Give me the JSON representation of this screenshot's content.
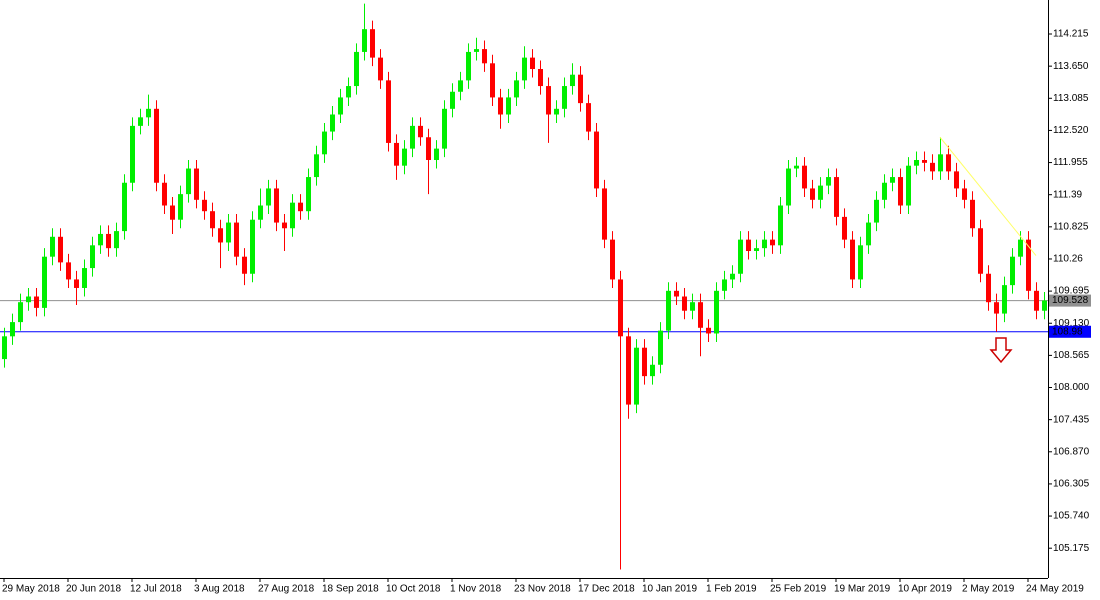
{
  "chart_data": {
    "type": "candlestick",
    "categories": [
      "29 May 2018",
      null,
      null,
      null,
      null,
      null,
      null,
      null,
      "20 Jun 2018",
      null,
      null,
      null,
      null,
      null,
      null,
      null,
      "12 Jul 2018",
      null,
      null,
      null,
      null,
      null,
      null,
      null,
      "3 Aug 2018",
      null,
      null,
      null,
      null,
      null,
      null,
      null,
      "27 Aug 2018",
      null,
      null,
      null,
      null,
      null,
      null,
      null,
      "18 Sep 2018",
      null,
      null,
      null,
      null,
      null,
      null,
      null,
      "10 Oct 2018",
      null,
      null,
      null,
      null,
      null,
      null,
      null,
      "1 Nov 2018",
      null,
      null,
      null,
      null,
      null,
      null,
      null,
      "23 Nov 2018",
      null,
      null,
      null,
      null,
      null,
      null,
      null,
      "17 Dec 2018",
      null,
      null,
      null,
      null,
      null,
      null,
      null,
      "10 Jan 2019",
      null,
      null,
      null,
      null,
      null,
      null,
      null,
      "1 Feb 2019",
      null,
      null,
      null,
      null,
      null,
      null,
      null,
      "25 Feb 2019",
      null,
      null,
      null,
      null,
      null,
      null,
      null,
      "19 Mar 2019",
      null,
      null,
      null,
      null,
      null,
      null,
      null,
      "10 Apr 2019",
      null,
      null,
      null,
      null,
      null,
      null,
      null,
      "2 May 2019",
      null,
      null,
      null,
      null,
      null,
      null,
      null,
      "24 May 2019",
      null,
      null
    ],
    "ohlc": [
      [
        108.5,
        109.05,
        108.35,
        108.9
      ],
      [
        108.9,
        109.3,
        108.75,
        109.15
      ],
      [
        109.15,
        109.65,
        109.0,
        109.5
      ],
      [
        109.5,
        109.75,
        109.35,
        109.6
      ],
      [
        109.6,
        109.75,
        109.25,
        109.4
      ],
      [
        109.4,
        110.45,
        109.25,
        110.3
      ],
      [
        110.3,
        110.8,
        110.15,
        110.65
      ],
      [
        110.65,
        110.8,
        110.05,
        110.2
      ],
      [
        110.2,
        110.35,
        109.75,
        109.9
      ],
      [
        109.9,
        110.05,
        109.45,
        109.75
      ],
      [
        109.75,
        110.25,
        109.6,
        110.1
      ],
      [
        110.1,
        110.65,
        109.95,
        110.5
      ],
      [
        110.5,
        110.85,
        110.35,
        110.7
      ],
      [
        110.7,
        110.85,
        110.3,
        110.45
      ],
      [
        110.45,
        110.9,
        110.3,
        110.75
      ],
      [
        110.75,
        111.75,
        110.6,
        111.6
      ],
      [
        111.6,
        112.75,
        111.45,
        112.6
      ],
      [
        112.6,
        112.9,
        112.45,
        112.75
      ],
      [
        112.75,
        113.15,
        112.6,
        112.9
      ],
      [
        112.9,
        113.05,
        111.45,
        111.6
      ],
      [
        111.6,
        111.75,
        111.05,
        111.2
      ],
      [
        111.2,
        111.35,
        110.7,
        110.95
      ],
      [
        110.95,
        111.55,
        110.8,
        111.4
      ],
      [
        111.4,
        112.0,
        111.25,
        111.85
      ],
      [
        111.85,
        112.0,
        111.15,
        111.3
      ],
      [
        111.3,
        111.45,
        110.95,
        111.1
      ],
      [
        111.1,
        111.25,
        110.65,
        110.8
      ],
      [
        110.8,
        110.95,
        110.1,
        110.55
      ],
      [
        110.55,
        111.05,
        110.4,
        110.9
      ],
      [
        110.9,
        111.05,
        110.15,
        110.3
      ],
      [
        110.3,
        110.45,
        109.8,
        110.0
      ],
      [
        110.0,
        111.1,
        109.85,
        110.95
      ],
      [
        110.95,
        111.5,
        110.8,
        111.2
      ],
      [
        111.2,
        111.65,
        111.05,
        111.5
      ],
      [
        111.5,
        111.65,
        110.75,
        110.9
      ],
      [
        110.9,
        111.05,
        110.4,
        110.8
      ],
      [
        110.8,
        111.4,
        110.65,
        111.25
      ],
      [
        111.25,
        111.4,
        110.95,
        111.1
      ],
      [
        111.1,
        111.85,
        110.95,
        111.7
      ],
      [
        111.7,
        112.25,
        111.55,
        112.1
      ],
      [
        112.1,
        112.65,
        111.95,
        112.5
      ],
      [
        112.5,
        112.95,
        112.35,
        112.8
      ],
      [
        112.8,
        113.25,
        112.65,
        113.1
      ],
      [
        113.1,
        113.45,
        112.95,
        113.3
      ],
      [
        113.3,
        114.05,
        113.15,
        113.9
      ],
      [
        113.9,
        114.75,
        113.75,
        114.3
      ],
      [
        114.3,
        114.45,
        113.65,
        113.8
      ],
      [
        113.8,
        113.95,
        113.25,
        113.4
      ],
      [
        113.4,
        113.55,
        112.15,
        112.3
      ],
      [
        112.3,
        112.45,
        111.65,
        111.9
      ],
      [
        111.9,
        112.35,
        111.75,
        112.2
      ],
      [
        112.2,
        112.75,
        112.05,
        112.6
      ],
      [
        112.6,
        112.75,
        112.25,
        112.4
      ],
      [
        112.4,
        112.55,
        111.4,
        112.0
      ],
      [
        112.0,
        112.35,
        111.85,
        112.2
      ],
      [
        112.2,
        113.05,
        112.05,
        112.9
      ],
      [
        112.9,
        113.35,
        112.75,
        113.2
      ],
      [
        113.2,
        113.55,
        113.05,
        113.4
      ],
      [
        113.4,
        114.05,
        113.25,
        113.9
      ],
      [
        113.9,
        114.15,
        113.75,
        113.95
      ],
      [
        113.95,
        114.1,
        113.55,
        113.7
      ],
      [
        113.7,
        113.85,
        112.95,
        113.1
      ],
      [
        113.1,
        113.25,
        112.55,
        112.8
      ],
      [
        112.8,
        113.25,
        112.65,
        113.1
      ],
      [
        113.1,
        113.55,
        112.95,
        113.4
      ],
      [
        113.4,
        114.0,
        113.25,
        113.8
      ],
      [
        113.8,
        113.95,
        113.45,
        113.6
      ],
      [
        113.6,
        113.75,
        113.15,
        113.3
      ],
      [
        113.3,
        113.45,
        112.3,
        112.8
      ],
      [
        112.8,
        113.05,
        112.65,
        112.9
      ],
      [
        112.9,
        113.45,
        112.75,
        113.3
      ],
      [
        113.3,
        113.7,
        113.15,
        113.5
      ],
      [
        113.5,
        113.65,
        112.85,
        113.0
      ],
      [
        113.0,
        113.15,
        112.35,
        112.5
      ],
      [
        112.5,
        112.65,
        111.35,
        111.5
      ],
      [
        111.5,
        111.65,
        110.45,
        110.6
      ],
      [
        110.6,
        110.75,
        109.75,
        109.9
      ],
      [
        109.9,
        110.05,
        104.8,
        108.9
      ],
      [
        108.9,
        109.05,
        107.45,
        107.7
      ],
      [
        107.7,
        108.85,
        107.55,
        108.7
      ],
      [
        108.7,
        108.85,
        108.05,
        108.2
      ],
      [
        108.2,
        108.55,
        108.05,
        108.4
      ],
      [
        108.4,
        109.15,
        108.25,
        109.0
      ],
      [
        109.0,
        109.85,
        108.85,
        109.7
      ],
      [
        109.7,
        109.85,
        109.45,
        109.6
      ],
      [
        109.6,
        109.75,
        109.2,
        109.35
      ],
      [
        109.35,
        109.65,
        109.2,
        109.5
      ],
      [
        109.5,
        109.65,
        108.55,
        109.05
      ],
      [
        109.05,
        109.2,
        108.8,
        108.95
      ],
      [
        108.95,
        109.85,
        108.8,
        109.7
      ],
      [
        109.7,
        110.05,
        109.55,
        109.9
      ],
      [
        109.9,
        110.15,
        109.75,
        110.0
      ],
      [
        110.0,
        110.75,
        109.85,
        110.6
      ],
      [
        110.6,
        110.75,
        110.25,
        110.4
      ],
      [
        110.4,
        110.6,
        110.25,
        110.45
      ],
      [
        110.45,
        110.75,
        110.3,
        110.6
      ],
      [
        110.6,
        110.75,
        110.35,
        110.5
      ],
      [
        110.5,
        111.35,
        110.35,
        111.2
      ],
      [
        111.2,
        112.0,
        111.05,
        111.85
      ],
      [
        111.85,
        112.05,
        111.7,
        111.9
      ],
      [
        111.9,
        112.05,
        111.35,
        111.5
      ],
      [
        111.5,
        111.65,
        111.15,
        111.3
      ],
      [
        111.3,
        111.7,
        111.15,
        111.55
      ],
      [
        111.55,
        111.85,
        111.4,
        111.7
      ],
      [
        111.7,
        111.85,
        110.85,
        111.0
      ],
      [
        111.0,
        111.15,
        110.45,
        110.6
      ],
      [
        110.6,
        110.75,
        109.75,
        109.9
      ],
      [
        109.9,
        110.65,
        109.75,
        110.5
      ],
      [
        110.5,
        111.05,
        110.35,
        110.9
      ],
      [
        110.9,
        111.45,
        110.75,
        111.3
      ],
      [
        111.3,
        111.75,
        111.15,
        111.6
      ],
      [
        111.6,
        111.85,
        111.45,
        111.7
      ],
      [
        111.7,
        111.85,
        111.05,
        111.2
      ],
      [
        111.2,
        112.05,
        111.05,
        111.9
      ],
      [
        111.9,
        112.15,
        111.75,
        112.0
      ],
      [
        112.0,
        112.15,
        111.8,
        111.95
      ],
      [
        111.95,
        112.1,
        111.65,
        111.8
      ],
      [
        111.8,
        112.4,
        111.65,
        112.1
      ],
      [
        112.1,
        112.25,
        111.65,
        111.8
      ],
      [
        111.8,
        111.95,
        111.35,
        111.5
      ],
      [
        111.5,
        111.65,
        111.15,
        111.3
      ],
      [
        111.3,
        111.45,
        110.65,
        110.8
      ],
      [
        110.8,
        110.95,
        109.85,
        110.0
      ],
      [
        110.0,
        110.15,
        109.35,
        109.5
      ],
      [
        109.5,
        109.65,
        108.98,
        109.3
      ],
      [
        109.3,
        109.95,
        109.15,
        109.8
      ],
      [
        109.8,
        110.45,
        109.65,
        110.3
      ],
      [
        110.3,
        110.75,
        110.15,
        110.6
      ],
      [
        110.6,
        110.75,
        109.55,
        109.7
      ],
      [
        109.7,
        109.85,
        109.2,
        109.35
      ],
      [
        109.35,
        109.68,
        109.2,
        109.53
      ]
    ],
    "up_color": "#00ee00",
    "down_color": "#ff0000",
    "ylim": [
      104.651,
      114.813
    ],
    "yticks": [
      114.215,
      {
        "value": 113.65,
        "label": "113.650"
      },
      113.085,
      {
        "value": 112.52,
        "label": "112.520"
      },
      111.955,
      111.39,
      110.825,
      110.26,
      109.695,
      {
        "value": 109.13,
        "label": "109.130"
      },
      108.565,
      {
        "value": 108.0,
        "label": "108.000"
      },
      107.435,
      {
        "value": 106.87,
        "label": "106.870"
      },
      106.305,
      {
        "value": 105.74,
        "label": "105.740"
      },
      105.175
    ],
    "levels": [
      {
        "value": 109.528,
        "color": "#909090"
      },
      {
        "value": 108.98,
        "color": "#0000ff"
      }
    ],
    "trendline": {
      "values": [
        112.4,
        110.32
      ],
      "color": "#ffff66"
    }
  }
}
